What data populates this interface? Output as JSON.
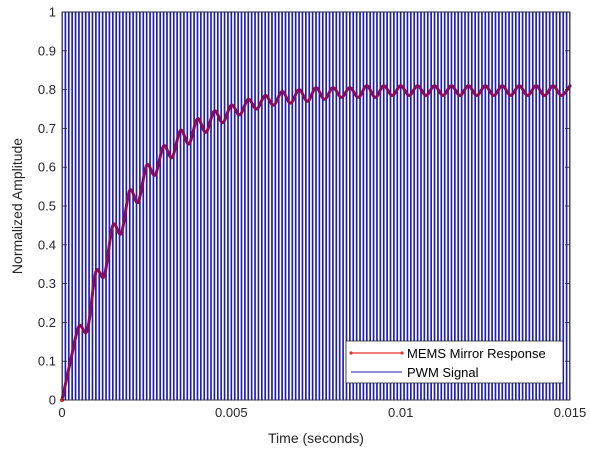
{
  "chart_data": {
    "type": "line",
    "title": "",
    "xlabel": "Time (seconds)",
    "ylabel": "Normalized Amplitude",
    "xlim": [
      0,
      0.015
    ],
    "ylim": [
      0,
      1
    ],
    "x_ticks": [
      {
        "value": 0,
        "label": "0"
      },
      {
        "value": 0.005,
        "label": "0.005"
      },
      {
        "value": 0.01,
        "label": "0.01"
      },
      {
        "value": 0.015,
        "label": "0.015"
      }
    ],
    "y_ticks": [
      {
        "value": 0,
        "label": "0"
      },
      {
        "value": 0.1,
        "label": "0.1"
      },
      {
        "value": 0.2,
        "label": "0.2"
      },
      {
        "value": 0.3,
        "label": "0.3"
      },
      {
        "value": 0.4,
        "label": "0.4"
      },
      {
        "value": 0.5,
        "label": "0.5"
      },
      {
        "value": 0.6,
        "label": "0.6"
      },
      {
        "value": 0.7,
        "label": "0.7"
      },
      {
        "value": 0.8,
        "label": "0.8"
      },
      {
        "value": 0.9,
        "label": "0.9"
      },
      {
        "value": 1,
        "label": "1"
      }
    ],
    "grid": false,
    "box": true,
    "legend_position": "bottom-right",
    "series": [
      {
        "name": "MEMS Mirror Response",
        "color": "#8B0A5A",
        "legend_color": "#E8322B",
        "marker": "dot",
        "x": [
          0,
          0.00025,
          0.0005,
          0.00075,
          0.001,
          0.00125,
          0.0015,
          0.00175,
          0.002,
          0.00225,
          0.0025,
          0.00275,
          0.003,
          0.00325,
          0.0035,
          0.00375,
          0.004,
          0.00425,
          0.0045,
          0.00475,
          0.005,
          0.00525,
          0.0055,
          0.00575,
          0.006,
          0.00625,
          0.0065,
          0.00675,
          0.007,
          0.00725,
          0.0075,
          0.00775,
          0.008,
          0.00825,
          0.0085,
          0.00875,
          0.009,
          0.00925,
          0.0095,
          0.00975,
          0.01,
          0.01025,
          0.0105,
          0.01075,
          0.011,
          0.01125,
          0.0115,
          0.01175,
          0.012,
          0.01225,
          0.0125,
          0.01275,
          0.013,
          0.01325,
          0.0135,
          0.01375,
          0.014,
          0.01425,
          0.0145,
          0.01475,
          0.015
        ],
        "y": [
          0,
          0.1,
          0.19,
          0.18,
          0.33,
          0.32,
          0.45,
          0.43,
          0.54,
          0.51,
          0.605,
          0.58,
          0.655,
          0.625,
          0.695,
          0.66,
          0.725,
          0.69,
          0.745,
          0.715,
          0.76,
          0.735,
          0.775,
          0.75,
          0.785,
          0.76,
          0.795,
          0.765,
          0.8,
          0.77,
          0.805,
          0.775,
          0.805,
          0.78,
          0.805,
          0.78,
          0.81,
          0.78,
          0.81,
          0.785,
          0.81,
          0.785,
          0.81,
          0.785,
          0.81,
          0.785,
          0.81,
          0.785,
          0.81,
          0.785,
          0.81,
          0.785,
          0.81,
          0.785,
          0.81,
          0.785,
          0.81,
          0.785,
          0.81,
          0.785,
          0.81
        ]
      },
      {
        "name": "PWM Signal",
        "color": "#1E1EB4",
        "type": "square-wave",
        "period": 0.0001,
        "duty": 0.8,
        "low": 0,
        "high": 1
      }
    ]
  }
}
